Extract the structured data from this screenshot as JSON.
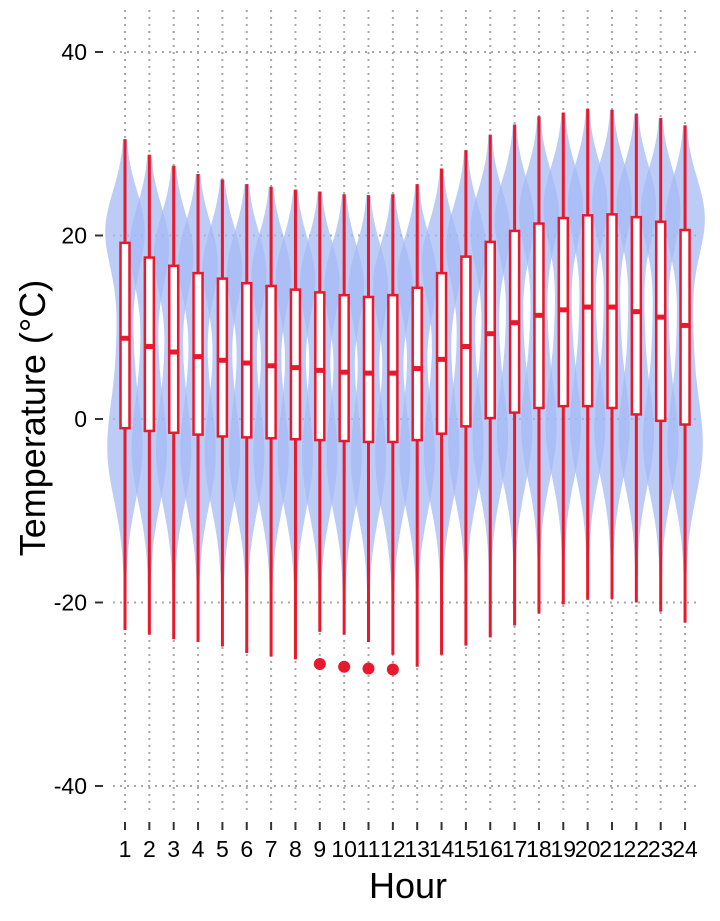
{
  "chart_data": {
    "type": "violin",
    "xlabel": "Hour",
    "ylabel": "Temperature (°C)",
    "ylim": [
      -44,
      44
    ],
    "y_ticks": [
      40,
      20,
      0,
      -20,
      -40
    ],
    "y_tick_labels": [
      "40",
      "20",
      "0",
      "-20",
      "-40"
    ],
    "grid": "dotted",
    "colors": {
      "violin": "#a4b8f4",
      "box": "#e8192c"
    },
    "categories": [
      "1",
      "2",
      "3",
      "4",
      "5",
      "6",
      "7",
      "8",
      "9",
      "10",
      "11",
      "12",
      "13",
      "14",
      "15",
      "16",
      "17",
      "18",
      "19",
      "20",
      "21",
      "22",
      "23",
      "24"
    ],
    "series": [
      {
        "min": -23.0,
        "q1": -1.0,
        "median": 8.8,
        "q3": 19.2,
        "max": 30.5
      },
      {
        "min": -23.5,
        "q1": -1.3,
        "median": 7.9,
        "q3": 17.6,
        "max": 28.8
      },
      {
        "min": -24.0,
        "q1": -1.5,
        "median": 7.3,
        "q3": 16.7,
        "max": 27.6
      },
      {
        "min": -24.3,
        "q1": -1.7,
        "median": 6.8,
        "q3": 15.9,
        "max": 26.7
      },
      {
        "min": -24.8,
        "q1": -1.9,
        "median": 6.4,
        "q3": 15.3,
        "max": 26.1
      },
      {
        "min": -25.5,
        "q1": -2.0,
        "median": 6.1,
        "q3": 14.8,
        "max": 25.6
      },
      {
        "min": -25.9,
        "q1": -2.1,
        "median": 5.8,
        "q3": 14.5,
        "max": 25.3
      },
      {
        "min": -26.2,
        "q1": -2.2,
        "median": 5.6,
        "q3": 14.1,
        "max": 25.0,
        "outliers": []
      },
      {
        "min": -23.2,
        "q1": -2.3,
        "median": 5.3,
        "q3": 13.8,
        "max": 24.8,
        "outliers": [
          -26.7
        ]
      },
      {
        "min": -23.5,
        "q1": -2.4,
        "median": 5.1,
        "q3": 13.5,
        "max": 24.5,
        "outliers": [
          -27.0
        ]
      },
      {
        "min": -24.3,
        "q1": -2.5,
        "median": 5.0,
        "q3": 13.3,
        "max": 24.4,
        "outliers": [
          -27.2
        ]
      },
      {
        "min": -25.7,
        "q1": -2.5,
        "median": 5.0,
        "q3": 13.5,
        "max": 24.5,
        "outliers": [
          -27.3
        ]
      },
      {
        "min": -27.0,
        "q1": -2.3,
        "median": 5.5,
        "q3": 14.3,
        "max": 25.6
      },
      {
        "min": -25.7,
        "q1": -1.6,
        "median": 6.5,
        "q3": 15.9,
        "max": 27.3
      },
      {
        "min": -24.7,
        "q1": -0.8,
        "median": 7.9,
        "q3": 17.7,
        "max": 29.3
      },
      {
        "min": -23.8,
        "q1": 0.1,
        "median": 9.3,
        "q3": 19.3,
        "max": 31.0
      },
      {
        "min": -22.5,
        "q1": 0.7,
        "median": 10.5,
        "q3": 20.5,
        "max": 32.1
      },
      {
        "min": -21.2,
        "q1": 1.2,
        "median": 11.3,
        "q3": 21.3,
        "max": 33.0
      },
      {
        "min": -20.2,
        "q1": 1.4,
        "median": 11.9,
        "q3": 21.9,
        "max": 33.4
      },
      {
        "min": -19.7,
        "q1": 1.4,
        "median": 12.2,
        "q3": 22.2,
        "max": 33.8
      },
      {
        "min": -19.6,
        "q1": 1.2,
        "median": 12.2,
        "q3": 22.3,
        "max": 33.7
      },
      {
        "min": -20.0,
        "q1": 0.5,
        "median": 11.7,
        "q3": 22.0,
        "max": 33.3
      },
      {
        "min": -21.0,
        "q1": -0.2,
        "median": 11.1,
        "q3": 21.5,
        "max": 32.8
      },
      {
        "min": -22.2,
        "q1": -0.6,
        "median": 10.2,
        "q3": 20.6,
        "max": 32.0
      }
    ]
  }
}
